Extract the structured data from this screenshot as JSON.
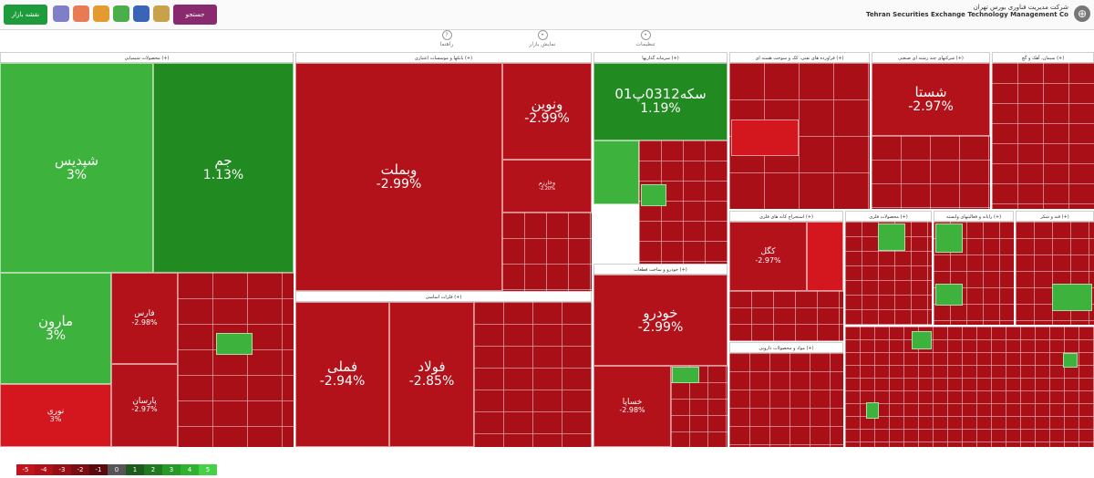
{
  "topbar": {
    "market_map_button": "نقشه بازار",
    "search_button": "جستجو",
    "tools": [
      "home-icon",
      "clock-icon",
      "house-icon",
      "cart-icon",
      "search-icon",
      "book-icon",
      "note-icon"
    ],
    "brand_fa": "شرکت مدیریت فناوری بورس تهران",
    "brand_en": "Tehran Securities Exchange Technology Management Co"
  },
  "subtools": [
    {
      "label": "تنظیمات",
      "icon": "settings-icon"
    },
    {
      "label": "نمایش بازار",
      "icon": "eye-icon"
    },
    {
      "label": "راهنما",
      "icon": "help-icon"
    }
  ],
  "sectors": [
    {
      "id": "chem",
      "title": "محصولات شیمیایی (+)"
    },
    {
      "id": "bank",
      "title": "بانکها و موسسات اعتباری (+)"
    },
    {
      "id": "basic",
      "title": "فلزات اساسی (+)"
    },
    {
      "id": "invest",
      "title": "سرمایه گذاریها (+)"
    },
    {
      "id": "auto",
      "title": "خودرو و ساخت قطعات (+)"
    },
    {
      "id": "oil",
      "title": "فراورده های نفتی، کک و سوخت هسته ای (+)"
    },
    {
      "id": "multi",
      "title": "شرکتهای چند رشته ای صنعتی (+)"
    },
    {
      "id": "cement",
      "title": "سیمان، آهک و گچ (+)"
    },
    {
      "id": "mining",
      "title": "استخراج کانه های فلزی (+)"
    },
    {
      "id": "metal_prod",
      "title": "محصولات فلزی (+)"
    },
    {
      "id": "pharma",
      "title": "مواد و محصولات دارویی (+)"
    },
    {
      "id": "telecom",
      "title": "رایانه و فعالیتهای وابسته (+)"
    },
    {
      "id": "sugar",
      "title": "قند و شکر (+)"
    }
  ],
  "tiles": {
    "shapdis": {
      "sym": "شپدیس",
      "pct": "3%"
    },
    "jam": {
      "sym": "جم",
      "pct": "1.13%"
    },
    "maroon": {
      "sym": "مارون",
      "pct": "3%"
    },
    "nori": {
      "sym": "نوری",
      "pct": "3%"
    },
    "fars": {
      "sym": "فارس",
      "pct": "-2.98%"
    },
    "parsan": {
      "sym": "پارسان",
      "pct": "-2.97%"
    },
    "vbmellat": {
      "sym": "وبملت",
      "pct": "-2.99%"
    },
    "vnovin": {
      "sym": "ونوین",
      "pct": "-2.99%"
    },
    "foolad": {
      "sym": "فولاد",
      "pct": "-2.85%"
    },
    "fameli": {
      "sym": "فملی",
      "pct": "-2.94%"
    },
    "sekeh": {
      "sym": "سکه0312پ01",
      "pct": "1.19%"
    },
    "khodro": {
      "sym": "خودرو",
      "pct": "-2.99%"
    },
    "khsapa": {
      "sym": "خساپا",
      "pct": "-2.98%"
    },
    "shasta": {
      "sym": "شستا",
      "pct": "-2.97%"
    },
    "kgol": {
      "sym": "کگل",
      "pct": "-2.97%"
    },
    "vkhark": {
      "sym": "وخارزم",
      "pct": "-2.20%"
    }
  },
  "legend": [
    "-5",
    "-4",
    "-3",
    "-2",
    "-1",
    "0",
    "1",
    "2",
    "3",
    "4",
    "5"
  ],
  "colors": {
    "strong_green": "#1e8a1e",
    "green": "#3db33d",
    "red": "#b7141c",
    "dark_red": "#9a0e14",
    "purple": "#8a2a6e"
  }
}
